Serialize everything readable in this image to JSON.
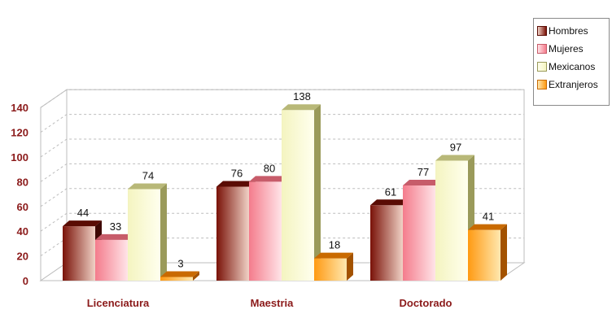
{
  "chart_data": {
    "type": "bar",
    "categories": [
      "Licenciatura",
      "Maestria",
      "Doctorado"
    ],
    "series": [
      {
        "name": "Hombres",
        "values": [
          44,
          76,
          61
        ]
      },
      {
        "name": "Mujeres",
        "values": [
          33,
          80,
          77
        ]
      },
      {
        "name": "Mexicanos",
        "values": [
          74,
          138,
          97
        ]
      },
      {
        "name": "Extranjeros",
        "values": [
          3,
          18,
          41
        ]
      }
    ],
    "ylim": [
      0,
      140
    ],
    "yticks": [
      "0",
      "20",
      "40",
      "60",
      "80",
      "100",
      "120",
      "140"
    ],
    "grid": true,
    "legend_position": "right",
    "data_labels": true,
    "colors": {
      "Hombres": {
        "light": "#f0d2c6",
        "dark": "#7a1208",
        "top": "#5a0c04",
        "side": "#3e0803"
      },
      "Mujeres": {
        "light": "#ffe4e8",
        "dark": "#f47c8c",
        "top": "#c75c6a",
        "side": "#a8404e"
      },
      "Mexicanos": {
        "light": "#ffffee",
        "dark": "#f4f4c0",
        "top": "#b8b878",
        "side": "#9a9a5a"
      },
      "Extranjeros": {
        "light": "#ffe8b0",
        "dark": "#ff9a12",
        "top": "#c96a00",
        "side": "#a35200"
      },
      "axis_labels": "#8b1a1a"
    }
  }
}
